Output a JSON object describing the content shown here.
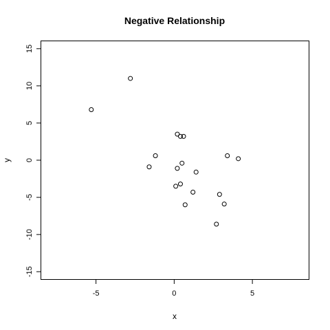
{
  "chart_data": {
    "type": "scatter",
    "title": "Negative Relationship",
    "xlabel": "x",
    "ylabel": "y",
    "xlim": [
      -8.5,
      8.6
    ],
    "ylim": [
      -16.0,
      16.0
    ],
    "x_ticks": [
      -5,
      0,
      5
    ],
    "y_ticks": [
      -15,
      -10,
      -5,
      0,
      5,
      10,
      15
    ],
    "grid": false,
    "legend": null,
    "marker": "open-circle",
    "color": "#000000",
    "points": [
      {
        "x": -5.3,
        "y": 6.8
      },
      {
        "x": -2.8,
        "y": 11.0
      },
      {
        "x": -1.6,
        "y": -0.9
      },
      {
        "x": -1.2,
        "y": 0.6
      },
      {
        "x": 0.1,
        "y": -3.5
      },
      {
        "x": 0.2,
        "y": 3.5
      },
      {
        "x": 0.2,
        "y": -1.1
      },
      {
        "x": 0.4,
        "y": 3.2
      },
      {
        "x": 0.4,
        "y": -3.2
      },
      {
        "x": 0.5,
        "y": -0.4
      },
      {
        "x": 0.6,
        "y": 3.2
      },
      {
        "x": 0.7,
        "y": -6.0
      },
      {
        "x": 1.2,
        "y": -4.3
      },
      {
        "x": 1.4,
        "y": -1.6
      },
      {
        "x": 2.7,
        "y": -8.6
      },
      {
        "x": 2.9,
        "y": -4.6
      },
      {
        "x": 3.2,
        "y": -5.9
      },
      {
        "x": 3.4,
        "y": 0.6
      },
      {
        "x": 4.1,
        "y": 0.2
      }
    ]
  }
}
